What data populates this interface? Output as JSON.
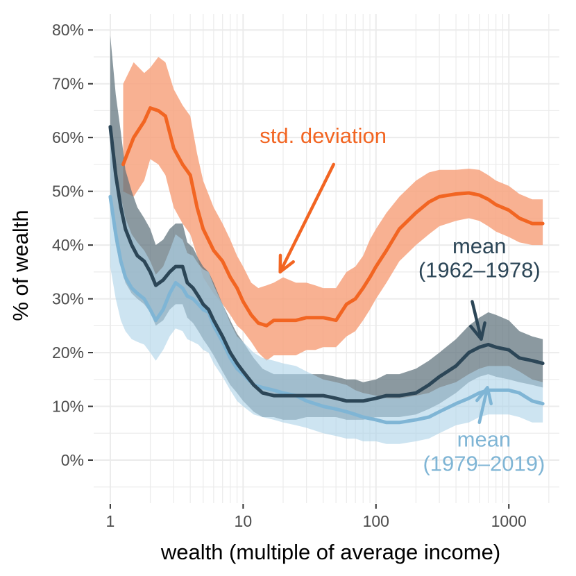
{
  "chart_data": {
    "type": "line",
    "title": "",
    "xlabel": "wealth (multiple of average income)",
    "ylabel": "% of wealth",
    "x_scale": "log10",
    "xlim": [
      0.75,
      2400
    ],
    "ylim": [
      -8,
      83
    ],
    "x_ticks": [
      1,
      10,
      100,
      1000
    ],
    "x_tick_labels": [
      "1",
      "10",
      "100",
      "1000"
    ],
    "y_ticks": [
      0,
      10,
      20,
      30,
      40,
      50,
      60,
      70,
      80
    ],
    "y_tick_labels": [
      "0%",
      "10%",
      "20%",
      "30%",
      "40%",
      "50%",
      "60%",
      "70%",
      "80%"
    ],
    "grid": true,
    "colors": {
      "std": "#f26522",
      "std_band": "#f7a37f",
      "mean_early": "#2c4657",
      "mean_early_band": "#5e717c",
      "mean_late": "#7fb5d5",
      "mean_late_band": "#aed4e8",
      "grid": "#ebebeb",
      "tick": "#333333"
    },
    "series": [
      {
        "name": "std. deviation",
        "x": [
          1.25,
          1.5,
          1.8,
          2.0,
          2.3,
          2.6,
          3.0,
          3.5,
          4.0,
          4.5,
          5.0,
          6.0,
          7.0,
          8.0,
          9.0,
          10.0,
          11.5,
          13.0,
          15.0,
          17.0,
          20.0,
          25.0,
          30.0,
          35.0,
          40.0,
          50.0,
          60.0,
          70.0,
          80.0,
          90.0,
          100,
          120,
          150,
          200,
          250,
          300,
          400,
          500,
          600,
          700,
          800,
          1000,
          1200,
          1500,
          1800
        ],
        "values": [
          55,
          60,
          63,
          65.5,
          65,
          64,
          58,
          55,
          53,
          47,
          43,
          39,
          37,
          34,
          32,
          29.5,
          27,
          25.5,
          25,
          26,
          26,
          26,
          26.5,
          26.5,
          26.5,
          26,
          29,
          30,
          32,
          34,
          36,
          39,
          43,
          46,
          48,
          49,
          49.5,
          49.7,
          49.3,
          48.5,
          47.5,
          46.5,
          45,
          44,
          44
        ],
        "lower": [
          50,
          49,
          52,
          56,
          55,
          53,
          47,
          44,
          42,
          38,
          34,
          31,
          29,
          27,
          25,
          24,
          22,
          20,
          18.5,
          19.5,
          19.5,
          19.5,
          20.5,
          20.5,
          21,
          21,
          23,
          24,
          26,
          28,
          30,
          33,
          37,
          40,
          42,
          43.5,
          44.5,
          45,
          44.5,
          43.5,
          42.5,
          41.5,
          40.5,
          40,
          40
        ],
        "upper": [
          70,
          74,
          72,
          73,
          75,
          74,
          69,
          66,
          64,
          57,
          52,
          47,
          44,
          41,
          38,
          36,
          33,
          32,
          32.5,
          33,
          34,
          33,
          33,
          32.5,
          32,
          32,
          35,
          36,
          38,
          41,
          43,
          46,
          49,
          52,
          53.5,
          54,
          54,
          54.2,
          54,
          53,
          52,
          51,
          49.5,
          48.5,
          48.5
        ]
      },
      {
        "name": "mean (1962–1978)",
        "x": [
          1.0,
          1.1,
          1.2,
          1.3,
          1.45,
          1.6,
          1.8,
          2.0,
          2.2,
          2.5,
          2.8,
          3.1,
          3.5,
          3.8,
          4.2,
          4.6,
          5.0,
          5.5,
          6.0,
          7.0,
          8.0,
          9.0,
          10.0,
          12.0,
          14.0,
          17.0,
          20.0,
          25.0,
          30.0,
          40.0,
          50.0,
          60.0,
          70.0,
          80.0,
          100,
          120,
          150,
          200,
          250,
          300,
          400,
          500,
          600,
          700,
          800,
          1000,
          1200,
          1500,
          1800
        ],
        "values": [
          62,
          53,
          47,
          43,
          40,
          38,
          37,
          35,
          32.5,
          33.5,
          35,
          36,
          36,
          33,
          32,
          30.5,
          29,
          28,
          26,
          23,
          20,
          18,
          16.5,
          14,
          12.5,
          12,
          12,
          12,
          12,
          12,
          11.5,
          11,
          11,
          11,
          11.5,
          12,
          12,
          12.5,
          14,
          15.5,
          17.5,
          20,
          21,
          21.5,
          21,
          20.5,
          19,
          18.5,
          18
        ],
        "lower": [
          47,
          40,
          36,
          33,
          31,
          30,
          29,
          27.5,
          25,
          26,
          28,
          29,
          29,
          26.5,
          25.5,
          24,
          22.5,
          21,
          19.5,
          16.5,
          14,
          12.5,
          11,
          9,
          8,
          8,
          7.5,
          7.5,
          8,
          8,
          8,
          7.5,
          7.5,
          7.5,
          8,
          8,
          8,
          8.5,
          9.5,
          10.5,
          12.5,
          14.5,
          15.5,
          16,
          15.5,
          15,
          14.5,
          14,
          13.5
        ],
        "upper": [
          79,
          68,
          61,
          54,
          50,
          47,
          45,
          43,
          40,
          41,
          43,
          44,
          44,
          40.5,
          39.5,
          37.5,
          36,
          35,
          33,
          29,
          26,
          23.5,
          22,
          19,
          17,
          16,
          16,
          16,
          16,
          16,
          15.5,
          15,
          15,
          14.5,
          15,
          16,
          16,
          17,
          18.5,
          20,
          22.5,
          25,
          26.5,
          27.5,
          27,
          26,
          24,
          23,
          22.5
        ]
      },
      {
        "name": "mean (1979–2019)",
        "x": [
          1.0,
          1.1,
          1.2,
          1.3,
          1.45,
          1.6,
          1.8,
          2.0,
          2.2,
          2.5,
          2.8,
          3.1,
          3.5,
          3.8,
          4.2,
          4.6,
          5.0,
          5.5,
          6.0,
          7.0,
          8.0,
          9.0,
          10.0,
          12.0,
          14.0,
          17.0,
          20.0,
          25.0,
          30.0,
          40.0,
          50.0,
          60.0,
          70.0,
          80.0,
          100,
          120,
          150,
          200,
          250,
          300,
          400,
          500,
          600,
          700,
          800,
          1000,
          1200,
          1500,
          1800
        ],
        "values": [
          49,
          42,
          37,
          34,
          32,
          31,
          30,
          28,
          26,
          28,
          31,
          33,
          32,
          30.5,
          30,
          29,
          28,
          27.5,
          25,
          22,
          19,
          17,
          16,
          14,
          13.5,
          13,
          12.5,
          12,
          11,
          10,
          9.5,
          9,
          8.5,
          8,
          7.5,
          7,
          7,
          7.5,
          8,
          9,
          10.5,
          11.5,
          12.5,
          13,
          13,
          13,
          12.5,
          11,
          10.5
        ],
        "lower": [
          36,
          30,
          26,
          24,
          22.5,
          22,
          21.5,
          20,
          18.5,
          20.5,
          23,
          24.5,
          24,
          22.5,
          22,
          21.5,
          20.5,
          20,
          18,
          15.5,
          13,
          11,
          10,
          8.5,
          8,
          7.5,
          7,
          6.5,
          6,
          5,
          4.5,
          4,
          4,
          3.5,
          3.5,
          3,
          3,
          3.5,
          4,
          5,
          6.5,
          7,
          8,
          8.5,
          8.5,
          8.5,
          8,
          7,
          7
        ],
        "upper": [
          62,
          54,
          49,
          45,
          42,
          40.5,
          39,
          37,
          34.5,
          36,
          39,
          42,
          41,
          38.5,
          38,
          36.5,
          35.5,
          35,
          32.5,
          29,
          25.5,
          23,
          22,
          20,
          19,
          18.5,
          18,
          17.5,
          16.5,
          15,
          14.5,
          14,
          13,
          12.5,
          12,
          11.5,
          11.5,
          12,
          12.5,
          13.5,
          14.5,
          16,
          17,
          17.5,
          17.5,
          17.5,
          16.5,
          15,
          14.5
        ]
      }
    ],
    "annotations": [
      {
        "text": "std. deviation",
        "x": 40,
        "y": 59,
        "color": "#f26522",
        "arrow_from": [
          48,
          55
        ],
        "arrow_to": [
          19,
          35
        ]
      },
      {
        "text": "mean",
        "x": 600,
        "y": 38.5,
        "color": "#2c4657"
      },
      {
        "text": "(1962–1978)",
        "x": 600,
        "y": 34,
        "color": "#2c4657",
        "arrow_from": [
          530,
          29.5
        ],
        "arrow_to": [
          620,
          22.5
        ]
      },
      {
        "text": "mean",
        "x": 650,
        "y": 2.5,
        "color": "#7fb5d5"
      },
      {
        "text": "(1979–2019)",
        "x": 650,
        "y": -2,
        "color": "#7fb5d5",
        "arrow_from": [
          600,
          7
        ],
        "arrow_to": [
          690,
          13.5
        ]
      }
    ]
  }
}
